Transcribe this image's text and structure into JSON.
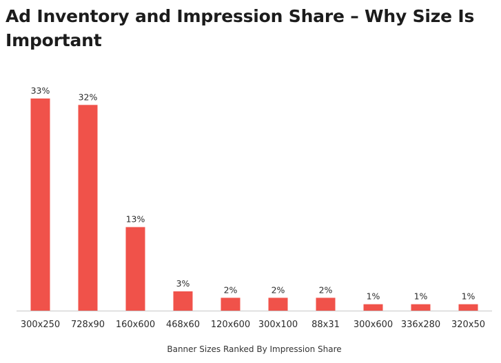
{
  "page": {
    "title": "Ad Inventory and Impression Share – Why Size Is Important"
  },
  "chart_data": {
    "type": "bar",
    "categories": [
      "300x250",
      "728x90",
      "160x600",
      "468x60",
      "120x600",
      "300x100",
      "88x31",
      "300x600",
      "336x280",
      "320x50"
    ],
    "values": [
      33,
      32,
      13,
      3,
      2,
      2,
      2,
      1,
      1,
      1
    ],
    "value_labels": [
      "33%",
      "32%",
      "13%",
      "3%",
      "2%",
      "2%",
      "2%",
      "1%",
      "1%",
      "1%"
    ],
    "xlabel": "Banner Sizes Ranked By Impression Share",
    "ylabel": "",
    "ylim": [
      0,
      33
    ],
    "grid": false,
    "bar_color": "#f0524a",
    "axis_color": "#c8c8c8"
  }
}
